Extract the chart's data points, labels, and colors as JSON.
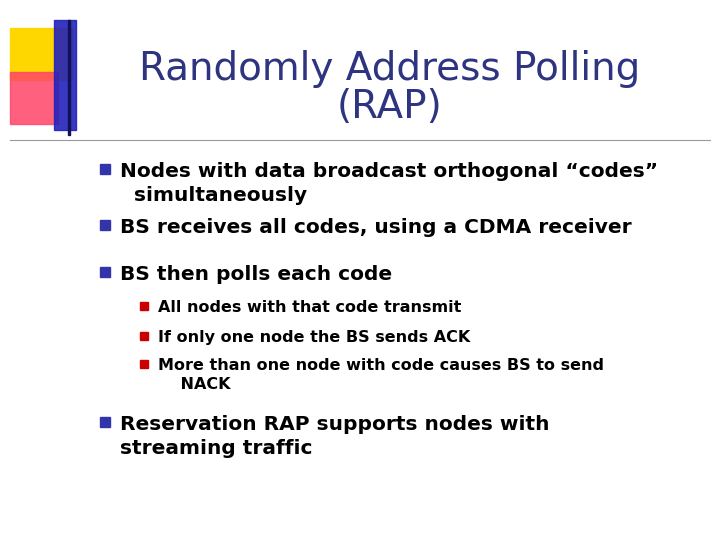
{
  "title_line1": "Randomly Address Polling",
  "title_line2": "(RAP)",
  "title_color": "#2E3480",
  "title_fontsize": 28,
  "bg_color": "#FFFFFF",
  "bullet_square_color": "#3333AA",
  "sub_square_color": "#CC0000",
  "bullet_fontsize": 14.5,
  "sub_bullet_fontsize": 11.5,
  "logo_yellow": "#FFD700",
  "logo_pink": "#FF4466",
  "logo_blue": "#2222BB",
  "divider_color": "#999999",
  "bullets": [
    {
      "text": "Nodes with data broadcast orthogonal “codes”\n  simultaneously",
      "level": 0
    },
    {
      "text": "BS receives all codes, using a CDMA receiver",
      "level": 0
    },
    {
      "text": "BS then polls each code",
      "level": 0
    },
    {
      "text": "All nodes with that code transmit",
      "level": 1
    },
    {
      "text": "If only one node the BS sends ACK",
      "level": 1
    },
    {
      "text": "More than one node with code causes BS to send\n    NACK",
      "level": 1
    },
    {
      "text": "Reservation RAP supports nodes with\nstreaming traffic",
      "level": 0
    }
  ]
}
